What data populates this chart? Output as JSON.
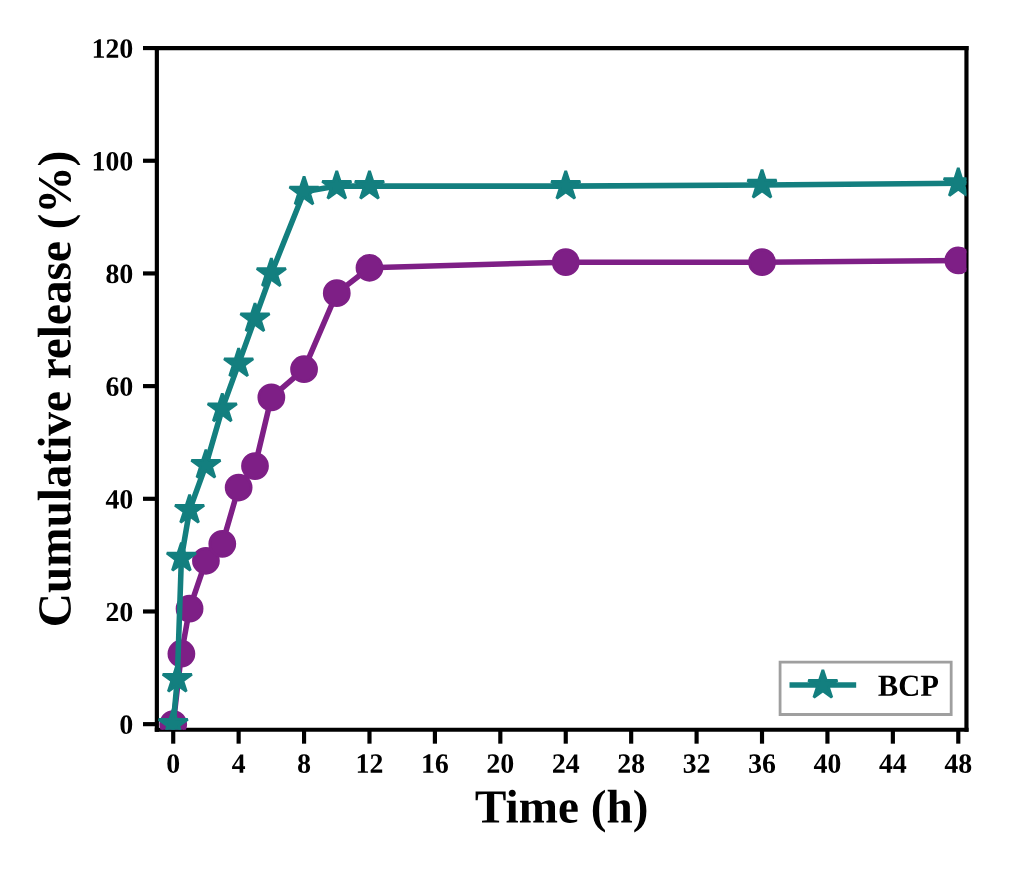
{
  "chart_data": {
    "type": "line",
    "xlabel": "Time (h)",
    "ylabel": "Cumulative release (%)",
    "xlim": [
      -1,
      48.5
    ],
    "xticks": [
      0,
      4,
      8,
      12,
      16,
      20,
      24,
      28,
      32,
      36,
      40,
      44,
      48
    ],
    "ylim": [
      -1,
      120
    ],
    "yticks": [
      0,
      20,
      40,
      60,
      80,
      100,
      120
    ],
    "grid": false,
    "legend": "bottom right",
    "series": [
      {
        "color": "#7e1f86",
        "marker": "circle",
        "x": [
          0,
          0.5,
          1,
          2,
          3,
          4,
          5,
          6,
          8,
          10,
          12,
          24,
          36,
          48
        ],
        "values": [
          0,
          12.5,
          20.5,
          29,
          32,
          42,
          45.8,
          58,
          63,
          76.5,
          81,
          82,
          82,
          82.3
        ]
      },
      {
        "name": "BCP",
        "color": "#137f7f",
        "marker": "star",
        "x": [
          0,
          0.25,
          0.5,
          1,
          2,
          3,
          4,
          5,
          6,
          8,
          10,
          12,
          24,
          36,
          48
        ],
        "values": [
          0,
          8,
          29.5,
          38,
          46,
          56,
          64,
          72,
          80,
          94.5,
          95.5,
          95.5,
          95.5,
          95.7,
          96
        ]
      }
    ]
  }
}
